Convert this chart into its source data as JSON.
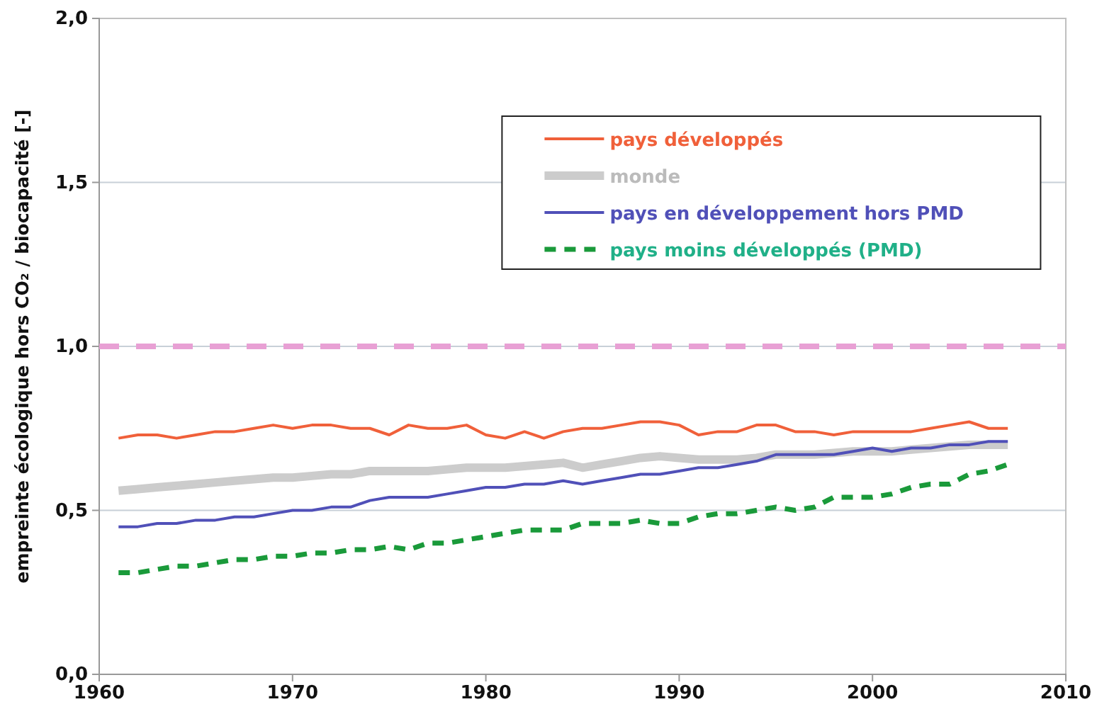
{
  "chart_data": {
    "type": "line",
    "ylabel": "empreinte écologique hors CO₂ / biocapacité [-]",
    "x": [
      1961,
      1962,
      1963,
      1964,
      1965,
      1966,
      1967,
      1968,
      1969,
      1970,
      1971,
      1972,
      1973,
      1974,
      1975,
      1976,
      1977,
      1978,
      1979,
      1980,
      1981,
      1982,
      1983,
      1984,
      1985,
      1986,
      1987,
      1988,
      1989,
      1990,
      1991,
      1992,
      1993,
      1994,
      1995,
      1996,
      1997,
      1998,
      1999,
      2000,
      2001,
      2002,
      2003,
      2004,
      2005,
      2006,
      2007
    ],
    "series": [
      {
        "name": "pays développés",
        "color": "#f0603a",
        "values": [
          0.72,
          0.73,
          0.73,
          0.72,
          0.73,
          0.74,
          0.74,
          0.75,
          0.76,
          0.75,
          0.76,
          0.76,
          0.75,
          0.75,
          0.73,
          0.76,
          0.75,
          0.75,
          0.76,
          0.73,
          0.72,
          0.74,
          0.72,
          0.74,
          0.75,
          0.75,
          0.76,
          0.77,
          0.77,
          0.76,
          0.73,
          0.74,
          0.74,
          0.76,
          0.76,
          0.74,
          0.74,
          0.73,
          0.74,
          0.74,
          0.74,
          0.74,
          0.75,
          0.76,
          0.77,
          0.75,
          0.75
        ]
      },
      {
        "name": "monde",
        "color": "#cccccc",
        "values": [
          0.56,
          0.565,
          0.57,
          0.575,
          0.58,
          0.585,
          0.59,
          0.595,
          0.6,
          0.6,
          0.605,
          0.61,
          0.61,
          0.62,
          0.62,
          0.62,
          0.62,
          0.625,
          0.63,
          0.63,
          0.63,
          0.635,
          0.64,
          0.645,
          0.63,
          0.64,
          0.65,
          0.66,
          0.665,
          0.66,
          0.655,
          0.655,
          0.655,
          0.66,
          0.67,
          0.67,
          0.67,
          0.675,
          0.68,
          0.68,
          0.68,
          0.685,
          0.69,
          0.695,
          0.7,
          0.7,
          0.7
        ]
      },
      {
        "name": "pays en développement hors PMD",
        "color": "#5050b8",
        "values": [
          0.45,
          0.45,
          0.46,
          0.46,
          0.47,
          0.47,
          0.48,
          0.48,
          0.49,
          0.5,
          0.5,
          0.51,
          0.51,
          0.53,
          0.54,
          0.54,
          0.54,
          0.55,
          0.56,
          0.57,
          0.57,
          0.58,
          0.58,
          0.59,
          0.58,
          0.59,
          0.6,
          0.61,
          0.61,
          0.62,
          0.63,
          0.63,
          0.64,
          0.65,
          0.67,
          0.67,
          0.67,
          0.67,
          0.68,
          0.69,
          0.68,
          0.69,
          0.69,
          0.7,
          0.7,
          0.71,
          0.71
        ]
      },
      {
        "name": "pays moins développés (PMD)",
        "color": "#1a9a3a",
        "line_style": "dashed",
        "values": [
          0.31,
          0.31,
          0.32,
          0.33,
          0.33,
          0.34,
          0.35,
          0.35,
          0.36,
          0.36,
          0.37,
          0.37,
          0.38,
          0.38,
          0.39,
          0.38,
          0.4,
          0.4,
          0.41,
          0.42,
          0.43,
          0.44,
          0.44,
          0.44,
          0.46,
          0.46,
          0.46,
          0.47,
          0.46,
          0.46,
          0.48,
          0.49,
          0.49,
          0.5,
          0.51,
          0.5,
          0.51,
          0.54,
          0.54,
          0.54,
          0.55,
          0.57,
          0.58,
          0.58,
          0.61,
          0.62,
          0.64
        ]
      }
    ],
    "xlim": [
      1960,
      2010
    ],
    "xticks": [
      1960,
      1970,
      1980,
      1990,
      2000,
      2010
    ],
    "ylim": [
      0,
      2
    ],
    "yticks": [
      {
        "value": 0,
        "label": "0,0"
      },
      {
        "value": 0.5,
        "label": "0,5"
      },
      {
        "value": 1,
        "label": "1,0"
      },
      {
        "value": 1.5,
        "label": "1,5"
      },
      {
        "value": 2,
        "label": "2,0"
      }
    ],
    "ref_lines": [
      {
        "axis": "y",
        "value": 1,
        "color": "#e8a0d4",
        "line_style": "dashed"
      }
    ],
    "grid": "y",
    "legend": "top right",
    "marker": "none"
  }
}
